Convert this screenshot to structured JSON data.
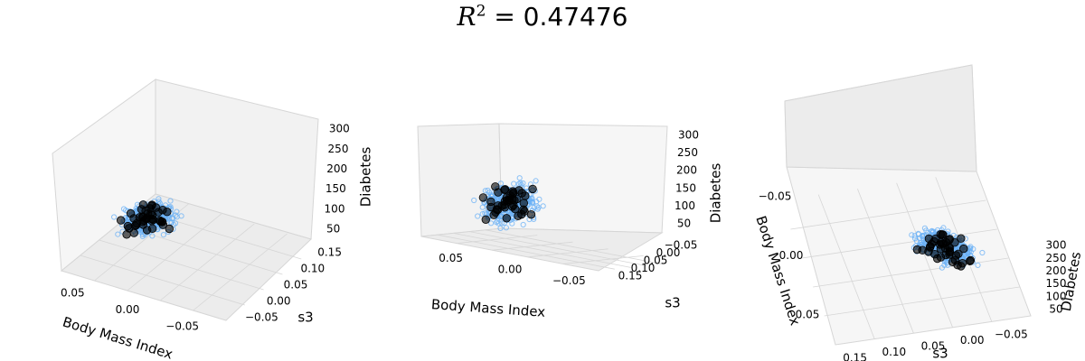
{
  "title": {
    "lhs": "R",
    "power": "2",
    "eq": " = 0.47476"
  },
  "colors": {
    "train": "#6ab0f5",
    "test": "#000000",
    "pane": "#f2f2f2",
    "grid": "#d6d6d6"
  },
  "chart_data": [
    {
      "type": "scatter3d",
      "view": "default",
      "xlabel": "Body Mass Index",
      "ylabel": "s3",
      "zlabel": "Diabetes",
      "xticks": [
        "0.05",
        "0.00",
        "−0.05"
      ],
      "yticks": [
        "−0.05",
        "0.00",
        "0.05",
        "0.10",
        "0.15"
      ],
      "zticks": [
        "50",
        "100",
        "150",
        "200",
        "250",
        "300"
      ],
      "xlim": [
        -0.09,
        0.17
      ],
      "ylim": [
        -0.1,
        0.19
      ],
      "zlim": [
        25,
        346
      ],
      "series": [
        {
          "marker": "hollow-circle",
          "count": 400
        },
        {
          "marker": "filled-circle",
          "count": 42
        }
      ]
    },
    {
      "type": "scatter3d",
      "view": "low-elevation",
      "xlabel": "Body Mass Index",
      "ylabel": "s3",
      "zlabel": "Diabetes",
      "xticks": [
        "0.05",
        "0.00",
        "−0.05"
      ],
      "yticks": [
        "0.15",
        "0.10",
        "0.05",
        "0.00",
        "−0.05"
      ],
      "zticks": [
        "50",
        "100",
        "150",
        "200",
        "250",
        "300"
      ],
      "xlim": [
        -0.09,
        0.17
      ],
      "ylim": [
        -0.1,
        0.19
      ],
      "zlim": [
        25,
        346
      ],
      "series": [
        {
          "marker": "hollow-circle",
          "count": 400
        },
        {
          "marker": "filled-circle",
          "count": 42
        }
      ]
    },
    {
      "type": "scatter3d",
      "view": "top-down",
      "xlabel": "Body Mass Index",
      "ylabel": "s3",
      "zlabel": "Diabetes",
      "xticks": [
        "0.05",
        "0.00",
        "−0.05"
      ],
      "yticks": [
        "0.15",
        "0.10",
        "0.05",
        "0.00",
        "−0.05"
      ],
      "zticks": [
        "50",
        "100",
        "150",
        "200",
        "250",
        "300"
      ],
      "xlim": [
        -0.09,
        0.17
      ],
      "ylim": [
        -0.1,
        0.19
      ],
      "zlim": [
        25,
        346
      ],
      "series": [
        {
          "marker": "hollow-circle",
          "count": 400
        },
        {
          "marker": "filled-circle",
          "count": 42
        }
      ]
    }
  ]
}
